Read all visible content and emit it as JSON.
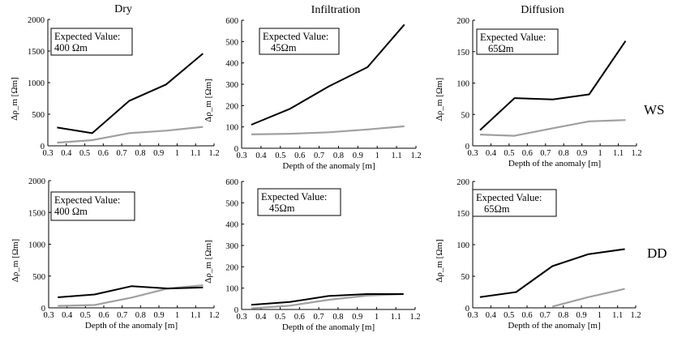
{
  "figure": {
    "columns": [
      "Dry",
      "Infiltration",
      "Diffusion"
    ],
    "rows": [
      "WS",
      "DD"
    ]
  },
  "colors": {
    "black_series": "#000000",
    "gray_series": "#a0a0a0",
    "axis": "#000000"
  },
  "chart_data": [
    {
      "type": "line",
      "row": "WS",
      "column": "Dry",
      "xlabel": "",
      "ylabel": "Δρ_m [Ωm]",
      "xlim": [
        0.3,
        1.2
      ],
      "ylim": [
        0,
        2000
      ],
      "xticks": [
        "0.3",
        "0.4",
        "0.5",
        "0.6",
        "0.7",
        "0.8",
        "0.9",
        "1",
        "1.1",
        "1.2"
      ],
      "yticks": [
        "0",
        "500",
        "1000",
        "1500",
        "2000"
      ],
      "annotation": [
        "Expected Value:",
        "400 Ωm"
      ],
      "series": [
        {
          "name": "black",
          "x": [
            0.35,
            0.54,
            0.74,
            0.94,
            1.14
          ],
          "y": [
            290,
            200,
            710,
            970,
            1460
          ]
        },
        {
          "name": "gray",
          "x": [
            0.35,
            0.54,
            0.74,
            0.94,
            1.14
          ],
          "y": [
            50,
            90,
            200,
            240,
            300
          ]
        }
      ]
    },
    {
      "type": "line",
      "row": "WS",
      "column": "Infiltration",
      "xlabel": "Depth of the anomaly [m]",
      "ylabel": "Δρ_m [Ωm]",
      "xlim": [
        0.3,
        1.2
      ],
      "ylim": [
        0,
        600
      ],
      "xticks": [
        "0.3",
        "0.4",
        "0.5",
        "0.6",
        "0.7",
        "0.8",
        "0.9",
        "1",
        "1.1",
        "1.2"
      ],
      "yticks": [
        "0",
        "100",
        "200",
        "300",
        "400",
        "500",
        "600"
      ],
      "annotation": [
        "Expected Value:",
        "45Ωm"
      ],
      "series": [
        {
          "name": "black",
          "x": [
            0.35,
            0.55,
            0.75,
            0.95,
            1.14
          ],
          "y": [
            110,
            185,
            290,
            380,
            580
          ]
        },
        {
          "name": "gray",
          "x": [
            0.35,
            0.55,
            0.75,
            0.95,
            1.14
          ],
          "y": [
            65,
            68,
            75,
            88,
            103
          ]
        }
      ]
    },
    {
      "type": "line",
      "row": "WS",
      "column": "Diffusion",
      "xlabel": "Depth of the anomaly [m]",
      "ylabel": "Δρ_m [Ωm]",
      "xlim": [
        0.3,
        1.2
      ],
      "ylim": [
        0,
        200
      ],
      "xticks": [
        "0.3",
        "0.4",
        "0.5",
        "0.6",
        "0.7",
        "0.8",
        "0.9",
        "1",
        "1.1",
        "1.2"
      ],
      "yticks": [
        "0",
        "50",
        "100",
        "150",
        "200"
      ],
      "annotation": [
        "Expected Value:",
        "65Ωm"
      ],
      "series": [
        {
          "name": "black",
          "x": [
            0.34,
            0.53,
            0.74,
            0.94,
            1.14
          ],
          "y": [
            25,
            76,
            74,
            82,
            167
          ]
        },
        {
          "name": "gray",
          "x": [
            0.34,
            0.53,
            0.74,
            0.94,
            1.14
          ],
          "y": [
            18,
            16,
            28,
            39,
            41
          ]
        }
      ]
    },
    {
      "type": "line",
      "row": "DD",
      "column": "Dry",
      "xlabel": "Depth of the anomaly [m]",
      "ylabel": "Δρ_m [Ωm]",
      "xlim": [
        0.3,
        1.2
      ],
      "ylim": [
        0,
        2000
      ],
      "xticks": [
        "0.3",
        "0.4",
        "0.5",
        "0.6",
        "0.7",
        "0.8",
        "0.9",
        "1",
        "1.1",
        "1.2"
      ],
      "yticks": [
        "0",
        "500",
        "1000",
        "1500",
        "2000"
      ],
      "annotation": [
        "Expected Value:",
        "400 Ωm"
      ],
      "series": [
        {
          "name": "black",
          "x": [
            0.35,
            0.55,
            0.75,
            0.95,
            1.14
          ],
          "y": [
            165,
            210,
            340,
            305,
            320
          ]
        },
        {
          "name": "gray",
          "x": [
            0.35,
            0.55,
            0.75,
            0.95,
            1.14
          ],
          "y": [
            30,
            45,
            160,
            305,
            355
          ]
        }
      ]
    },
    {
      "type": "line",
      "row": "DD",
      "column": "Infiltration",
      "xlabel": "Depth of the anomaly [m]",
      "ylabel": "Δρ_m [Ωm]",
      "xlim": [
        0.3,
        1.2
      ],
      "ylim": [
        0,
        600
      ],
      "xticks": [
        "0.3",
        "0.4",
        "0.5",
        "0.6",
        "0.7",
        "0.8",
        "0.9",
        "1",
        "1.1",
        "1.2"
      ],
      "yticks": [
        "0",
        "100",
        "200",
        "300",
        "400",
        "500",
        "600"
      ],
      "annotation": [
        "Expected Value:",
        "45Ωm"
      ],
      "series": [
        {
          "name": "black",
          "x": [
            0.35,
            0.55,
            0.75,
            0.95,
            1.14
          ],
          "y": [
            22,
            35,
            63,
            72,
            72
          ]
        },
        {
          "name": "gray",
          "x": [
            0.35,
            0.55,
            0.75,
            0.95,
            1.14
          ],
          "y": [
            5,
            18,
            45,
            65,
            72
          ]
        }
      ]
    },
    {
      "type": "line",
      "row": "DD",
      "column": "Diffusion",
      "xlabel": "Depth of the anomaly [m]",
      "ylabel": "Δρ_m [Ωm]",
      "xlim": [
        0.3,
        1.2
      ],
      "ylim": [
        0,
        200
      ],
      "xticks": [
        "0.3",
        "0.4",
        "0.5",
        "0.6",
        "0.7",
        "0.8",
        "0.9",
        "1",
        "1.1",
        "1.2"
      ],
      "yticks": [
        "0",
        "50",
        "100",
        "150",
        "200"
      ],
      "annotation": [
        "Expected Value:",
        "65Ωm"
      ],
      "series": [
        {
          "name": "black",
          "x": [
            0.34,
            0.54,
            0.74,
            0.94,
            1.14
          ],
          "y": [
            17,
            25,
            66,
            85,
            93
          ]
        },
        {
          "name": "gray",
          "x": [
            0.74,
            0.94,
            1.14
          ],
          "y": [
            2,
            17,
            30
          ]
        }
      ]
    }
  ]
}
